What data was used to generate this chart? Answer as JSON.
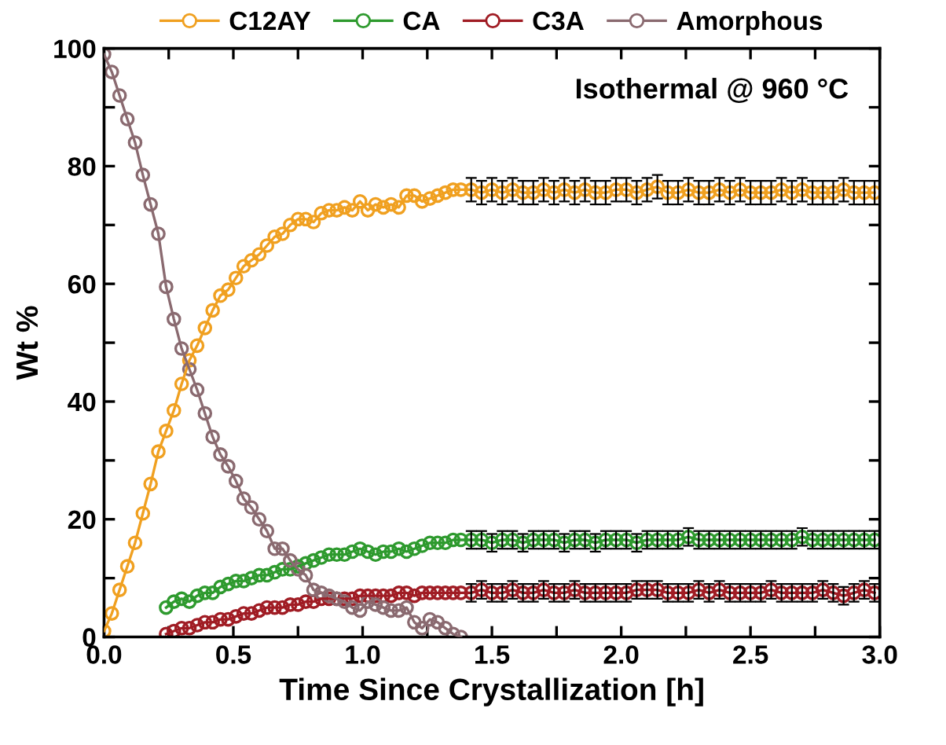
{
  "chart_data": {
    "type": "line",
    "xlabel": "Time Since Crystallization [h]",
    "ylabel": "Wt %",
    "annotations": [
      "Isothermal @ 960 °C"
    ],
    "xlim": [
      0,
      3
    ],
    "ylim": [
      0,
      100
    ],
    "xticks": [
      {
        "value": 0,
        "label": "0.0"
      },
      {
        "value": 0.25,
        "label": null
      },
      {
        "value": 0.5,
        "label": "0.5"
      },
      {
        "value": 0.75,
        "label": null
      },
      {
        "value": 1,
        "label": "1.0"
      },
      {
        "value": 1.25,
        "label": null
      },
      {
        "value": 1.5,
        "label": "1.5"
      },
      {
        "value": 1.75,
        "label": null
      },
      {
        "value": 2,
        "label": "2.0"
      },
      {
        "value": 2.25,
        "label": null
      },
      {
        "value": 2.5,
        "label": "2.5"
      },
      {
        "value": 2.75,
        "label": null
      },
      {
        "value": 3,
        "label": "3.0"
      }
    ],
    "yticks": [
      0,
      {
        "value": 10,
        "label": null
      },
      20,
      {
        "value": 30,
        "label": null
      },
      40,
      {
        "value": 50,
        "label": null
      },
      60,
      {
        "value": 70,
        "label": null
      },
      80,
      {
        "value": 90,
        "label": null
      },
      100
    ],
    "marker": "circle",
    "line_style": "solid",
    "legend": "top",
    "grid": false,
    "series": [
      {
        "name": "C12AY",
        "color": "#f0a020",
        "x": [
          0,
          0.03,
          0.06,
          0.09,
          0.12,
          0.15,
          0.18,
          0.21,
          0.24,
          0.27,
          0.3,
          0.33,
          0.36,
          0.39,
          0.42,
          0.45,
          0.48,
          0.51,
          0.54,
          0.57,
          0.6,
          0.63,
          0.66,
          0.69,
          0.72,
          0.75,
          0.78,
          0.81,
          0.84,
          0.87,
          0.9,
          0.93,
          0.96,
          0.99,
          1.02,
          1.05,
          1.08,
          1.11,
          1.14,
          1.17,
          1.2,
          1.23,
          1.26,
          1.29,
          1.32,
          1.35,
          1.38,
          1.42,
          1.46,
          1.5,
          1.54,
          1.58,
          1.62,
          1.66,
          1.7,
          1.74,
          1.78,
          1.82,
          1.86,
          1.9,
          1.94,
          1.98,
          2.02,
          2.06,
          2.1,
          2.14,
          2.18,
          2.22,
          2.26,
          2.3,
          2.34,
          2.38,
          2.42,
          2.46,
          2.5,
          2.54,
          2.58,
          2.62,
          2.66,
          2.7,
          2.74,
          2.78,
          2.82,
          2.86,
          2.9,
          2.94,
          2.98
        ],
        "values": [
          1,
          4,
          8,
          12,
          16,
          21,
          26,
          31.5,
          35,
          38.5,
          43,
          47,
          49.5,
          52.5,
          55.5,
          58,
          59,
          61,
          63,
          64,
          65,
          66.5,
          68,
          68.5,
          70,
          71,
          71,
          70.5,
          72,
          72.5,
          72.5,
          73,
          72.5,
          74,
          72.5,
          73.5,
          73,
          73.5,
          73,
          75,
          75,
          74,
          74.5,
          75,
          75.5,
          76,
          76,
          76,
          75.5,
          76,
          75.5,
          76,
          75.5,
          75.5,
          76,
          75.5,
          76,
          75.5,
          76,
          75.5,
          75.5,
          76,
          76,
          75.5,
          76,
          76.5,
          75.5,
          75.5,
          76,
          75.5,
          75.5,
          76,
          75.5,
          76,
          75.5,
          75.5,
          75.5,
          76,
          75.5,
          76,
          75.5,
          75.5,
          75.5,
          76,
          75.5,
          75.5,
          75.5
        ],
        "errors": [
          null,
          null,
          null,
          null,
          null,
          null,
          null,
          null,
          null,
          null,
          null,
          null,
          null,
          null,
          null,
          null,
          null,
          null,
          null,
          null,
          null,
          null,
          null,
          null,
          null,
          null,
          null,
          null,
          null,
          null,
          null,
          null,
          null,
          null,
          null,
          null,
          null,
          null,
          null,
          null,
          null,
          null,
          null,
          null,
          null,
          null,
          null,
          2,
          2,
          2,
          2,
          2,
          2,
          2,
          2,
          2,
          2,
          2,
          2,
          2,
          2,
          2,
          2,
          2,
          2,
          2,
          2,
          2,
          2,
          2,
          2,
          2,
          2,
          2,
          2,
          2,
          2,
          2,
          2,
          2,
          2,
          2,
          2,
          2,
          2,
          2,
          2
        ]
      },
      {
        "name": "CA",
        "color": "#2e9a2e",
        "x": [
          0.24,
          0.27,
          0.3,
          0.33,
          0.36,
          0.39,
          0.42,
          0.45,
          0.48,
          0.51,
          0.54,
          0.57,
          0.6,
          0.63,
          0.66,
          0.69,
          0.72,
          0.75,
          0.78,
          0.81,
          0.84,
          0.87,
          0.9,
          0.93,
          0.96,
          0.99,
          1.02,
          1.05,
          1.08,
          1.11,
          1.14,
          1.17,
          1.2,
          1.23,
          1.26,
          1.29,
          1.32,
          1.35,
          1.38,
          1.42,
          1.46,
          1.5,
          1.54,
          1.58,
          1.62,
          1.66,
          1.7,
          1.74,
          1.78,
          1.82,
          1.86,
          1.9,
          1.94,
          1.98,
          2.02,
          2.06,
          2.1,
          2.14,
          2.18,
          2.22,
          2.26,
          2.3,
          2.34,
          2.38,
          2.42,
          2.46,
          2.5,
          2.54,
          2.58,
          2.62,
          2.66,
          2.7,
          2.74,
          2.78,
          2.82,
          2.86,
          2.9,
          2.94,
          2.98
        ],
        "values": [
          5,
          6,
          6.5,
          6,
          7,
          7.5,
          7.5,
          8.5,
          9,
          9.5,
          9.5,
          10,
          10.5,
          10.5,
          11,
          11.5,
          11.5,
          12,
          12.5,
          13,
          13.5,
          14,
          14,
          14,
          14.5,
          15,
          14.5,
          14,
          14.5,
          14.5,
          15,
          14.5,
          15,
          15.5,
          16,
          16,
          16,
          16.5,
          16.5,
          16.5,
          16.5,
          16,
          16.5,
          16.5,
          16,
          16.5,
          16.5,
          16.5,
          16,
          16.5,
          16.5,
          16,
          16.5,
          16.5,
          16.5,
          16,
          16.5,
          16.5,
          16.5,
          16.5,
          17,
          16.5,
          16.5,
          16.5,
          16.5,
          16.5,
          16.5,
          16.5,
          16.5,
          16.5,
          16.5,
          17,
          16.5,
          16.5,
          16.5,
          16.5,
          16.5,
          16.5,
          16.5
        ],
        "errors": [
          null,
          null,
          null,
          null,
          null,
          null,
          null,
          null,
          null,
          null,
          null,
          null,
          null,
          null,
          null,
          null,
          null,
          null,
          null,
          null,
          null,
          null,
          null,
          null,
          null,
          null,
          null,
          null,
          null,
          null,
          null,
          null,
          null,
          null,
          null,
          null,
          null,
          null,
          null,
          1.5,
          1.5,
          1.5,
          1.5,
          1.5,
          1.5,
          1.5,
          1.5,
          1.5,
          1.5,
          1.5,
          1.5,
          1.5,
          1.5,
          1.5,
          1.5,
          1.5,
          1.5,
          1.5,
          1.5,
          1.5,
          1.5,
          1.5,
          1.5,
          1.5,
          1.5,
          1.5,
          1.5,
          1.5,
          1.5,
          1.5,
          1.5,
          1.5,
          1.5,
          1.5,
          1.5,
          1.5,
          1.5,
          1.5,
          1.5
        ]
      },
      {
        "name": "C3A",
        "color": "#a01c24",
        "x": [
          0.24,
          0.27,
          0.3,
          0.33,
          0.36,
          0.39,
          0.42,
          0.45,
          0.48,
          0.51,
          0.54,
          0.57,
          0.6,
          0.63,
          0.66,
          0.69,
          0.72,
          0.75,
          0.78,
          0.81,
          0.84,
          0.87,
          0.9,
          0.93,
          0.96,
          0.99,
          1.02,
          1.05,
          1.08,
          1.11,
          1.14,
          1.17,
          1.2,
          1.23,
          1.26,
          1.29,
          1.32,
          1.35,
          1.38,
          1.42,
          1.46,
          1.5,
          1.54,
          1.58,
          1.62,
          1.66,
          1.7,
          1.74,
          1.78,
          1.82,
          1.86,
          1.9,
          1.94,
          1.98,
          2.02,
          2.06,
          2.1,
          2.14,
          2.18,
          2.22,
          2.26,
          2.3,
          2.34,
          2.38,
          2.42,
          2.46,
          2.5,
          2.54,
          2.58,
          2.62,
          2.66,
          2.7,
          2.74,
          2.78,
          2.82,
          2.86,
          2.9,
          2.94,
          2.98
        ],
        "values": [
          0.5,
          1,
          1.5,
          1.5,
          2,
          2.5,
          2.5,
          3,
          3,
          3.5,
          4,
          4,
          4.5,
          5,
          5,
          5,
          5.5,
          5.5,
          6,
          6,
          6.5,
          6.5,
          6.5,
          6.5,
          6.5,
          7,
          7,
          7,
          7,
          7,
          7.5,
          7.5,
          7,
          7.5,
          7.5,
          7.5,
          7.5,
          7.5,
          7.5,
          7.5,
          8,
          7.5,
          7.5,
          8,
          7.5,
          7.5,
          8,
          7.5,
          7.5,
          8,
          7.5,
          7.5,
          7.5,
          7.5,
          7.5,
          8,
          8,
          8,
          7.5,
          7.5,
          7.5,
          8,
          7.5,
          8,
          7.5,
          7.5,
          7.5,
          7.5,
          8,
          7.5,
          7.5,
          7.5,
          7.5,
          8,
          7.5,
          7,
          7.5,
          8,
          7.5
        ],
        "errors": [
          null,
          null,
          null,
          null,
          null,
          null,
          null,
          null,
          null,
          null,
          null,
          null,
          null,
          null,
          null,
          null,
          null,
          null,
          null,
          null,
          null,
          null,
          null,
          null,
          null,
          null,
          null,
          null,
          null,
          null,
          null,
          null,
          null,
          null,
          null,
          null,
          null,
          null,
          null,
          1.5,
          1.5,
          1.5,
          1.5,
          1.5,
          1.5,
          1.5,
          1.5,
          1.5,
          1.5,
          1.5,
          1.5,
          1.5,
          1.5,
          1.5,
          1.5,
          1.5,
          1.5,
          1.5,
          1.5,
          1.5,
          1.5,
          1.5,
          1.5,
          1.5,
          1.5,
          1.5,
          1.5,
          1.5,
          1.5,
          1.5,
          1.5,
          1.5,
          1.5,
          1.5,
          1.5,
          1.5,
          1.5,
          1.5,
          1.5
        ]
      },
      {
        "name": "Amorphous",
        "color": "#8a6a70",
        "x": [
          0,
          0.03,
          0.06,
          0.09,
          0.12,
          0.15,
          0.18,
          0.21,
          0.24,
          0.27,
          0.3,
          0.33,
          0.36,
          0.39,
          0.42,
          0.45,
          0.48,
          0.51,
          0.54,
          0.57,
          0.6,
          0.63,
          0.66,
          0.69,
          0.72,
          0.75,
          0.78,
          0.81,
          0.84,
          0.87,
          0.9,
          0.93,
          0.96,
          0.99,
          1.02,
          1.05,
          1.08,
          1.11,
          1.14,
          1.17,
          1.2,
          1.23,
          1.26,
          1.29,
          1.32,
          1.35,
          1.38
        ],
        "values": [
          99,
          96,
          92,
          88,
          84,
          78.5,
          73.5,
          68.5,
          59.5,
          54,
          49,
          45.5,
          42,
          38,
          34,
          31,
          29,
          26.5,
          23.5,
          22,
          20,
          18,
          15,
          15,
          13,
          11.5,
          10.5,
          8,
          7.5,
          7,
          6.5,
          6,
          5,
          4.5,
          6,
          5.5,
          5,
          4.5,
          4.5,
          5,
          2.5,
          1.5,
          3,
          2.5,
          1.5,
          0.5,
          0
        ]
      }
    ]
  }
}
